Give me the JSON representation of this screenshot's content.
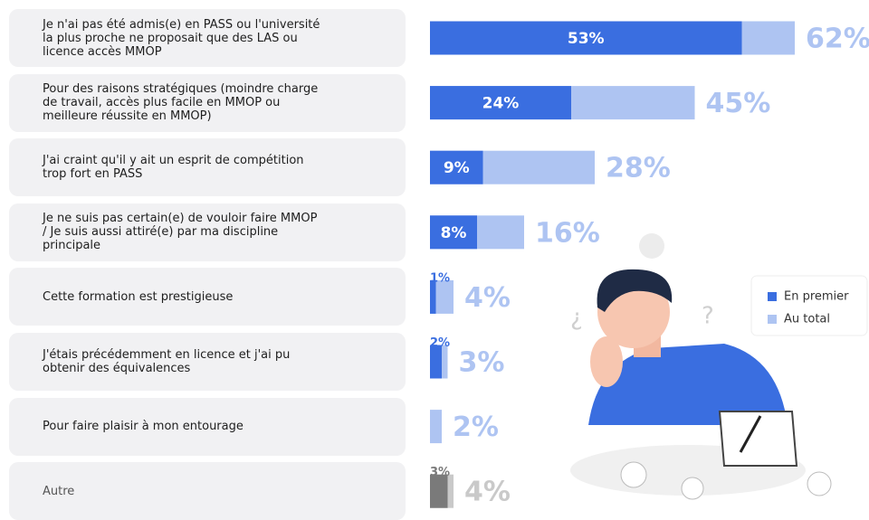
{
  "chart_data": {
    "type": "bar",
    "orientation": "horizontal",
    "categories": [
      "Je n'ai pas été admis(e) en PASS ou l'université la plus proche ne proposait que des LAS ou licence accès MMOP",
      "Pour des raisons stratégiques (moindre charge de travail, accès plus facile en MMOP ou meilleure réussite en MMOP)",
      "J'ai craint qu'il y ait un esprit de compétition trop fort en PASS",
      "Je ne suis pas certain(e) de vouloir faire MMOP / Je suis aussi attiré(e) par ma discipline principale",
      "Cette formation est prestigieuse",
      "J'étais précédemment en licence et j'ai pu obtenir des équivalences",
      "Pour faire plaisir à mon entourage",
      "Autre"
    ],
    "series": [
      {
        "name": "Au total",
        "color": "#aec4f2",
        "colors": [
          "#aec4f2",
          "#aec4f2",
          "#aec4f2",
          "#aec4f2",
          "#aec4f2",
          "#aec4f2",
          "#aec4f2",
          "#c9c9c9"
        ],
        "values": [
          62,
          45,
          28,
          16,
          4,
          3,
          2,
          4
        ],
        "value_labels": [
          "62%",
          "45%",
          "28%",
          "16%",
          "4%",
          "3%",
          "2%",
          "4%"
        ]
      },
      {
        "name": "En premier",
        "color": "#3a6ee0",
        "colors": [
          "#3a6ee0",
          "#3a6ee0",
          "#3a6ee0",
          "#3a6ee0",
          "#3a6ee0",
          "#3a6ee0",
          "#3a6ee0",
          "#7a7a7a"
        ],
        "values": [
          53,
          24,
          9,
          8,
          1,
          2,
          null,
          3
        ],
        "value_labels": [
          "53%",
          "24%",
          "9%",
          "8%",
          "1%",
          "2%",
          null,
          "3%"
        ]
      }
    ],
    "xlim": [
      0,
      62
    ],
    "legend": "right"
  }
}
